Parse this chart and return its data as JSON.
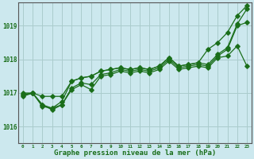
{
  "xlabel": "Graphe pression niveau de la mer (hPa)",
  "background_color": "#cce8ee",
  "grid_color": "#aacccc",
  "line_color": "#1a6e1a",
  "ylim": [
    1015.5,
    1019.7
  ],
  "yticks": [
    1016,
    1017,
    1018,
    1019
  ],
  "series_main": [
    1017.0,
    1017.0,
    1016.9,
    1016.9,
    1016.9,
    1017.35,
    1017.45,
    1017.5,
    1017.65,
    1017.7,
    1017.75,
    1017.7,
    1017.75,
    1017.7,
    1017.8,
    1018.05,
    1017.8,
    1017.85,
    1017.9,
    1017.85,
    1018.15,
    1018.35,
    1019.05,
    1019.5
  ],
  "series_dip": [
    1016.95,
    1017.0,
    1016.65,
    1016.55,
    1016.65,
    1017.15,
    1017.3,
    1017.25,
    1017.55,
    1017.6,
    1017.7,
    1017.65,
    1017.7,
    1017.65,
    1017.75,
    1018.0,
    1017.75,
    1017.8,
    1017.85,
    1017.8,
    1018.1,
    1018.3,
    1019.0,
    1019.1
  ],
  "series_low": [
    1016.95,
    1017.0,
    1016.65,
    1016.5,
    1016.65,
    1017.1,
    1017.25,
    1017.1,
    1017.5,
    1017.55,
    1017.65,
    1017.6,
    1017.65,
    1017.6,
    1017.7,
    1017.95,
    1017.7,
    1017.75,
    1017.8,
    1017.75,
    1018.05,
    1018.1,
    1018.4,
    1017.8
  ],
  "series_high": [
    1016.9,
    1017.0,
    1016.6,
    1016.55,
    1016.75,
    1017.35,
    1017.45,
    1017.5,
    1017.65,
    1017.7,
    1017.75,
    1017.7,
    1017.75,
    1017.7,
    1017.8,
    1018.05,
    1017.8,
    1017.85,
    1017.9,
    1018.3,
    1018.5,
    1018.8,
    1019.3,
    1019.6
  ]
}
